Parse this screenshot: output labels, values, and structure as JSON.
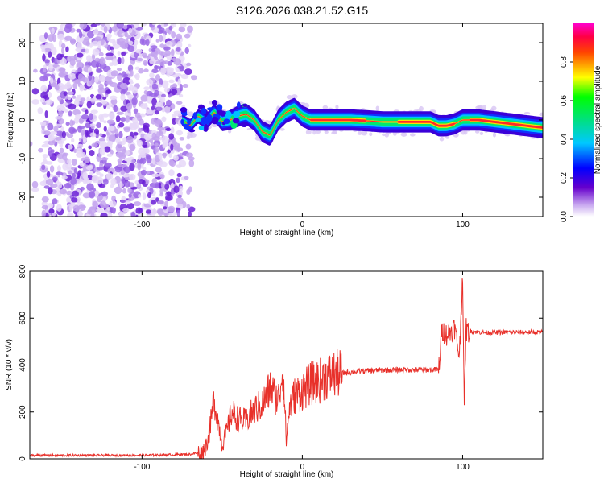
{
  "title": "S126.2026.038.21.52.G15",
  "chart_data": [
    {
      "type": "heatmap",
      "title": "S126.2026.038.21.52.G15",
      "xlabel": "Height of straight line (km)",
      "ylabel": "Frequency (Hz)",
      "xlim": [
        -170,
        150
      ],
      "ylim": [
        -25,
        25
      ],
      "xticks": [
        -100,
        0,
        100
      ],
      "yticks": [
        -20,
        -10,
        0,
        10,
        20
      ],
      "colorbar": {
        "label": "Normalized spectral amplitude",
        "range": [
          0,
          1
        ],
        "ticks": [
          "0.0",
          "0.2",
          "0.4",
          "0.6",
          "0.8"
        ]
      },
      "ridge": {
        "x": [
          -75,
          -70,
          -65,
          -60,
          -55,
          -50,
          -45,
          -40,
          -35,
          -30,
          -25,
          -20,
          -15,
          -10,
          -5,
          0,
          5,
          10,
          20,
          30,
          40,
          50,
          60,
          70,
          80,
          85,
          90,
          95,
          100,
          110,
          120,
          130,
          140,
          150
        ],
        "freq": [
          0,
          -1.5,
          1,
          -0.5,
          2,
          -0.5,
          0,
          1,
          1.5,
          0,
          -3,
          -4,
          0,
          2,
          3,
          1,
          0,
          0,
          0,
          0,
          -0.2,
          -0.5,
          -0.5,
          -0.5,
          -0.5,
          -1.5,
          -1.5,
          -1,
          0,
          0,
          -0.5,
          -1,
          -1.5,
          -2
        ]
      },
      "noise_region_x": [
        -170,
        -75
      ]
    },
    {
      "type": "line",
      "title": "",
      "xlabel": "Height of straight line (km)",
      "ylabel": "SNR (10 * v/v)",
      "xlim": [
        -170,
        150
      ],
      "ylim": [
        0,
        800
      ],
      "xticks": [
        -100,
        0,
        100
      ],
      "yticks": [
        0,
        200,
        400,
        600,
        800
      ],
      "series": [
        {
          "name": "SNR",
          "color": "#e8302a",
          "x": [
            -170,
            -140,
            -110,
            -90,
            -70,
            -62,
            -60,
            -58,
            -55,
            -52,
            -50,
            -47,
            -44,
            -40,
            -35,
            -30,
            -25,
            -20,
            -15,
            -12,
            -10,
            -8,
            -5,
            0,
            5,
            10,
            15,
            20,
            25,
            30,
            40,
            50,
            60,
            70,
            80,
            85,
            86,
            87,
            90,
            95,
            98,
            100,
            101,
            102,
            103,
            105,
            110,
            120,
            130,
            140,
            150
          ],
          "values": [
            15,
            15,
            15,
            16,
            20,
            30,
            60,
            110,
            255,
            140,
            60,
            120,
            200,
            170,
            160,
            210,
            230,
            300,
            250,
            390,
            80,
            220,
            270,
            290,
            320,
            330,
            350,
            360,
            365,
            370,
            375,
            378,
            380,
            380,
            380,
            380,
            450,
            550,
            530,
            560,
            440,
            800,
            180,
            560,
            540,
            545,
            540,
            538,
            540,
            540,
            540
          ]
        }
      ]
    }
  ]
}
